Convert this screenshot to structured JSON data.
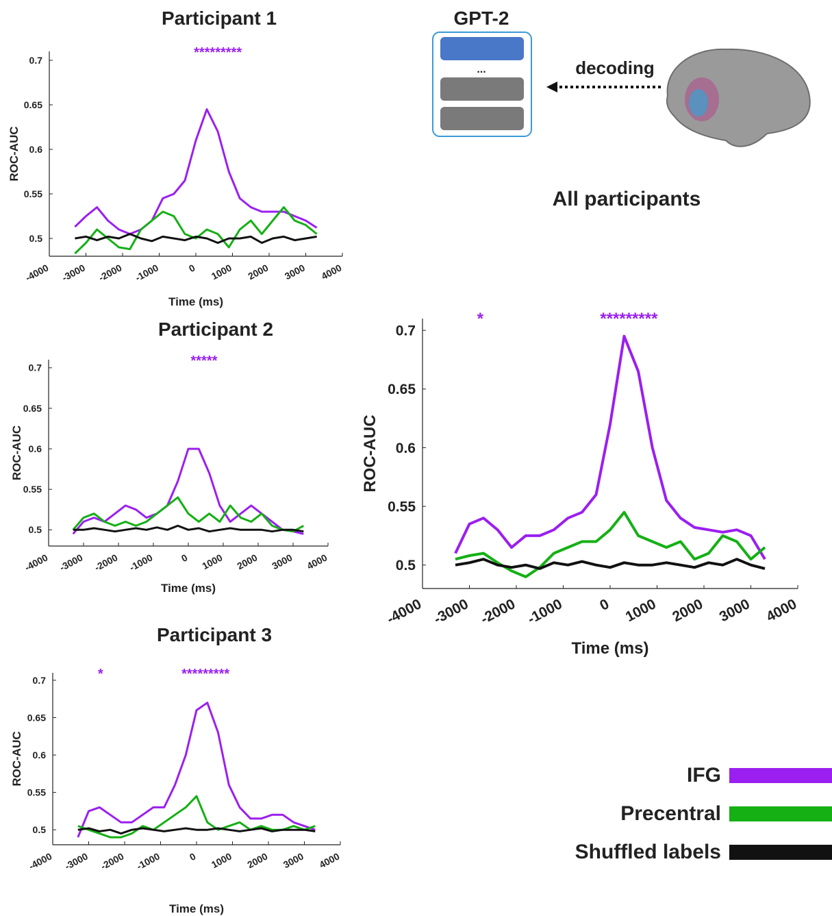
{
  "diagram": {
    "title": "GPT-2",
    "ellipsis": "...",
    "label": "decoding"
  },
  "chart_data": [
    {
      "type": "line",
      "title": "Participant 1",
      "x_label": "Time (ms)",
      "y_label": "ROC-AUC",
      "x": [
        -3300,
        -3000,
        -2700,
        -2400,
        -2100,
        -1800,
        -1500,
        -1200,
        -900,
        -600,
        -300,
        0,
        300,
        600,
        900,
        1200,
        1500,
        1800,
        2100,
        2400,
        2700,
        3000,
        3300
      ],
      "series": [
        {
          "name": "IFG",
          "color": "#9b1ff0",
          "values": [
            0.513,
            0.525,
            0.535,
            0.52,
            0.51,
            0.505,
            0.51,
            0.52,
            0.545,
            0.55,
            0.565,
            0.61,
            0.645,
            0.62,
            0.575,
            0.545,
            0.535,
            0.53,
            0.53,
            0.53,
            0.525,
            0.52,
            0.512
          ]
        },
        {
          "name": "Precentral",
          "color": "#14b014",
          "values": [
            0.483,
            0.495,
            0.51,
            0.5,
            0.49,
            0.488,
            0.51,
            0.52,
            0.53,
            0.525,
            0.505,
            0.5,
            0.51,
            0.505,
            0.49,
            0.51,
            0.52,
            0.505,
            0.52,
            0.535,
            0.52,
            0.515,
            0.505
          ]
        },
        {
          "name": "Shuffled labels",
          "color": "#111111",
          "values": [
            0.5,
            0.502,
            0.498,
            0.502,
            0.5,
            0.505,
            0.5,
            0.497,
            0.502,
            0.5,
            0.498,
            0.502,
            0.5,
            0.495,
            0.5,
            0.5,
            0.502,
            0.495,
            0.5,
            0.502,
            0.498,
            0.5,
            0.502
          ]
        }
      ],
      "annotations": [
        {
          "text": "*********",
          "x": 600
        }
      ],
      "xlim": [
        -4000,
        4000
      ],
      "xticks": [
        -4000,
        -3000,
        -2000,
        -1000,
        0,
        1000,
        2000,
        3000,
        4000
      ],
      "ylim": [
        0.48,
        0.71
      ],
      "yticks": [
        0.5,
        0.55,
        0.6,
        0.65,
        0.7
      ]
    },
    {
      "type": "line",
      "title": "Participant 2",
      "x_label": "Time (ms)",
      "y_label": "ROC-AUC",
      "x": [
        -3300,
        -3000,
        -2700,
        -2400,
        -2100,
        -1800,
        -1500,
        -1200,
        -900,
        -600,
        -300,
        0,
        300,
        600,
        900,
        1200,
        1500,
        1800,
        2100,
        2400,
        2700,
        3000,
        3300
      ],
      "series": [
        {
          "name": "IFG",
          "color": "#9b1ff0",
          "values": [
            0.495,
            0.51,
            0.515,
            0.51,
            0.52,
            0.53,
            0.525,
            0.515,
            0.52,
            0.53,
            0.56,
            0.6,
            0.6,
            0.57,
            0.53,
            0.51,
            0.52,
            0.53,
            0.52,
            0.51,
            0.5,
            0.498,
            0.495
          ]
        },
        {
          "name": "Precentral",
          "color": "#14b014",
          "values": [
            0.5,
            0.515,
            0.52,
            0.51,
            0.505,
            0.51,
            0.505,
            0.51,
            0.52,
            0.53,
            0.54,
            0.52,
            0.51,
            0.52,
            0.51,
            0.53,
            0.515,
            0.51,
            0.52,
            0.505,
            0.5,
            0.498,
            0.505
          ]
        },
        {
          "name": "Shuffled labels",
          "color": "#111111",
          "values": [
            0.5,
            0.5,
            0.502,
            0.5,
            0.498,
            0.5,
            0.502,
            0.5,
            0.503,
            0.5,
            0.505,
            0.5,
            0.502,
            0.498,
            0.5,
            0.502,
            0.5,
            0.5,
            0.5,
            0.498,
            0.5,
            0.5,
            0.498
          ]
        }
      ],
      "annotations": [
        {
          "text": "*****",
          "x": 450
        }
      ],
      "xlim": [
        -4000,
        4000
      ],
      "xticks": [
        -4000,
        -3000,
        -2000,
        -1000,
        0,
        1000,
        2000,
        3000,
        4000
      ],
      "ylim": [
        0.48,
        0.71
      ],
      "yticks": [
        0.5,
        0.55,
        0.6,
        0.65,
        0.7
      ]
    },
    {
      "type": "line",
      "title": "Participant 3",
      "x_label": "Time (ms)",
      "y_label": "ROC-AUC",
      "x": [
        -3300,
        -3000,
        -2700,
        -2400,
        -2100,
        -1800,
        -1500,
        -1200,
        -900,
        -600,
        -300,
        0,
        300,
        600,
        900,
        1200,
        1500,
        1800,
        2100,
        2400,
        2700,
        3000,
        3300
      ],
      "series": [
        {
          "name": "IFG",
          "color": "#9b1ff0",
          "values": [
            0.49,
            0.525,
            0.53,
            0.52,
            0.51,
            0.51,
            0.52,
            0.53,
            0.53,
            0.56,
            0.6,
            0.66,
            0.67,
            0.63,
            0.56,
            0.53,
            0.515,
            0.515,
            0.52,
            0.52,
            0.51,
            0.505,
            0.5
          ]
        },
        {
          "name": "Precentral",
          "color": "#14b014",
          "values": [
            0.505,
            0.5,
            0.495,
            0.49,
            0.49,
            0.495,
            0.505,
            0.5,
            0.51,
            0.52,
            0.53,
            0.545,
            0.51,
            0.5,
            0.505,
            0.51,
            0.5,
            0.505,
            0.5,
            0.5,
            0.505,
            0.5,
            0.505
          ]
        },
        {
          "name": "Shuffled labels",
          "color": "#111111",
          "values": [
            0.5,
            0.502,
            0.498,
            0.5,
            0.495,
            0.5,
            0.502,
            0.5,
            0.498,
            0.5,
            0.502,
            0.5,
            0.5,
            0.502,
            0.5,
            0.498,
            0.5,
            0.502,
            0.498,
            0.5,
            0.5,
            0.5,
            0.498
          ]
        }
      ],
      "annotations": [
        {
          "text": "*",
          "x": -2670
        },
        {
          "text": "*********",
          "x": 250
        }
      ],
      "xlim": [
        -4000,
        4000
      ],
      "xticks": [
        -4000,
        -3000,
        -2000,
        -1000,
        0,
        1000,
        2000,
        3000,
        4000
      ],
      "ylim": [
        0.48,
        0.71
      ],
      "yticks": [
        0.5,
        0.55,
        0.6,
        0.65,
        0.7
      ]
    },
    {
      "type": "line",
      "title": "All participants",
      "x_label": "Time (ms)",
      "y_label": "ROC-AUC",
      "x": [
        -3300,
        -3000,
        -2700,
        -2400,
        -2100,
        -1800,
        -1500,
        -1200,
        -900,
        -600,
        -300,
        0,
        300,
        600,
        900,
        1200,
        1500,
        1800,
        2100,
        2400,
        2700,
        3000,
        3300
      ],
      "series": [
        {
          "name": "IFG",
          "color": "#9b1ff0",
          "values": [
            0.51,
            0.535,
            0.54,
            0.53,
            0.515,
            0.525,
            0.525,
            0.53,
            0.54,
            0.545,
            0.56,
            0.62,
            0.695,
            0.665,
            0.6,
            0.555,
            0.54,
            0.532,
            0.53,
            0.528,
            0.53,
            0.525,
            0.505
          ]
        },
        {
          "name": "Precentral",
          "color": "#14b014",
          "values": [
            0.505,
            0.508,
            0.51,
            0.502,
            0.495,
            0.49,
            0.498,
            0.51,
            0.515,
            0.52,
            0.52,
            0.53,
            0.545,
            0.525,
            0.52,
            0.515,
            0.52,
            0.505,
            0.51,
            0.525,
            0.52,
            0.505,
            0.515
          ]
        },
        {
          "name": "Shuffled labels",
          "color": "#111111",
          "values": [
            0.5,
            0.502,
            0.505,
            0.5,
            0.498,
            0.5,
            0.497,
            0.502,
            0.5,
            0.503,
            0.5,
            0.498,
            0.502,
            0.5,
            0.5,
            0.502,
            0.5,
            0.498,
            0.502,
            0.5,
            0.505,
            0.5,
            0.497
          ]
        }
      ],
      "annotations": [
        {
          "text": "*",
          "x": -2770
        },
        {
          "text": "*********",
          "x": 400
        }
      ],
      "xlim": [
        -4000,
        4000
      ],
      "xticks": [
        -4000,
        -3000,
        -2000,
        -1000,
        0,
        1000,
        2000,
        3000,
        4000
      ],
      "ylim": [
        0.48,
        0.71
      ],
      "yticks": [
        0.5,
        0.55,
        0.6,
        0.65,
        0.7
      ]
    }
  ]
}
